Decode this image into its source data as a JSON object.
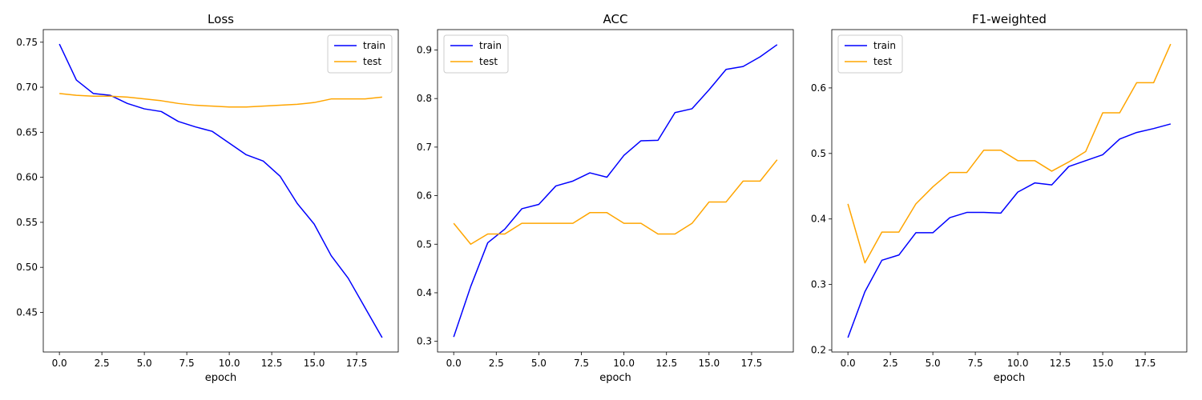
{
  "chart_data": [
    {
      "type": "line",
      "title": "Loss",
      "xlabel": "epoch",
      "ylabel": "",
      "x": [
        0,
        1,
        2,
        3,
        4,
        5,
        6,
        7,
        8,
        9,
        10,
        11,
        12,
        13,
        14,
        15,
        16,
        17,
        18,
        19
      ],
      "xlim": [
        -0.95,
        19.95
      ],
      "ylim": [
        0.406,
        0.764
      ],
      "xticks": [
        0.0,
        2.5,
        5.0,
        7.5,
        10.0,
        12.5,
        15.0,
        17.5
      ],
      "xtick_labels": [
        "0.0",
        "2.5",
        "5.0",
        "7.5",
        "10.0",
        "12.5",
        "15.0",
        "17.5"
      ],
      "yticks": [
        0.45,
        0.5,
        0.55,
        0.6,
        0.65,
        0.7,
        0.75
      ],
      "ytick_labels": [
        "0.45",
        "0.50",
        "0.55",
        "0.60",
        "0.65",
        "0.70",
        "0.75"
      ],
      "legend_position": "top-right",
      "grid": false,
      "series": [
        {
          "name": "train",
          "color": "#0000ff",
          "values": [
            0.748,
            0.708,
            0.693,
            0.691,
            0.682,
            0.676,
            0.673,
            0.662,
            0.656,
            0.651,
            0.638,
            0.625,
            0.618,
            0.601,
            0.571,
            0.548,
            0.513,
            0.488,
            0.455,
            0.422
          ]
        },
        {
          "name": "test",
          "color": "#ffa500",
          "values": [
            0.693,
            0.691,
            0.69,
            0.69,
            0.689,
            0.687,
            0.685,
            0.682,
            0.68,
            0.679,
            0.678,
            0.678,
            0.679,
            0.68,
            0.681,
            0.683,
            0.687,
            0.687,
            0.687,
            0.689
          ]
        }
      ]
    },
    {
      "type": "line",
      "title": "ACC",
      "xlabel": "epoch",
      "ylabel": "",
      "x": [
        0,
        1,
        2,
        3,
        4,
        5,
        6,
        7,
        8,
        9,
        10,
        11,
        12,
        13,
        14,
        15,
        16,
        17,
        18,
        19
      ],
      "xlim": [
        -0.95,
        19.95
      ],
      "ylim": [
        0.278,
        0.942
      ],
      "xticks": [
        0.0,
        2.5,
        5.0,
        7.5,
        10.0,
        12.5,
        15.0,
        17.5
      ],
      "xtick_labels": [
        "0.0",
        "2.5",
        "5.0",
        "7.5",
        "10.0",
        "12.5",
        "15.0",
        "17.5"
      ],
      "yticks": [
        0.3,
        0.4,
        0.5,
        0.6,
        0.7,
        0.8,
        0.9
      ],
      "ytick_labels": [
        "0.3",
        "0.4",
        "0.5",
        "0.6",
        "0.7",
        "0.8",
        "0.9"
      ],
      "legend_position": "top-left",
      "grid": false,
      "series": [
        {
          "name": "train",
          "color": "#0000ff",
          "values": [
            0.309,
            0.413,
            0.503,
            0.531,
            0.573,
            0.582,
            0.62,
            0.63,
            0.647,
            0.638,
            0.683,
            0.713,
            0.714,
            0.771,
            0.779,
            0.818,
            0.86,
            0.866,
            0.886,
            0.911
          ]
        },
        {
          "name": "test",
          "color": "#ffa500",
          "values": [
            0.543,
            0.5,
            0.521,
            0.521,
            0.543,
            0.543,
            0.543,
            0.543,
            0.565,
            0.565,
            0.543,
            0.543,
            0.521,
            0.521,
            0.543,
            0.587,
            0.587,
            0.63,
            0.63,
            0.674
          ]
        }
      ]
    },
    {
      "type": "line",
      "title": "F1-weighted",
      "xlabel": "epoch",
      "ylabel": "",
      "x": [
        0,
        1,
        2,
        3,
        4,
        5,
        6,
        7,
        8,
        9,
        10,
        11,
        12,
        13,
        14,
        15,
        16,
        17,
        18,
        19
      ],
      "xlim": [
        -0.95,
        19.95
      ],
      "ylim": [
        0.197,
        0.689
      ],
      "xticks": [
        0.0,
        2.5,
        5.0,
        7.5,
        10.0,
        12.5,
        15.0,
        17.5
      ],
      "xtick_labels": [
        "0.0",
        "2.5",
        "5.0",
        "7.5",
        "10.0",
        "12.5",
        "15.0",
        "17.5"
      ],
      "yticks": [
        0.2,
        0.3,
        0.4,
        0.5,
        0.6
      ],
      "ytick_labels": [
        "0.2",
        "0.3",
        "0.4",
        "0.5",
        "0.6"
      ],
      "legend_position": "top-left",
      "grid": false,
      "series": [
        {
          "name": "train",
          "color": "#0000ff",
          "values": [
            0.219,
            0.289,
            0.337,
            0.345,
            0.379,
            0.379,
            0.402,
            0.41,
            0.41,
            0.409,
            0.441,
            0.455,
            0.452,
            0.48,
            0.489,
            0.498,
            0.522,
            0.532,
            0.538,
            0.545
          ]
        },
        {
          "name": "test",
          "color": "#ffa500",
          "values": [
            0.423,
            0.333,
            0.38,
            0.38,
            0.423,
            0.449,
            0.471,
            0.471,
            0.505,
            0.505,
            0.489,
            0.489,
            0.473,
            0.487,
            0.503,
            0.562,
            0.562,
            0.608,
            0.608,
            0.667
          ]
        }
      ]
    }
  ]
}
